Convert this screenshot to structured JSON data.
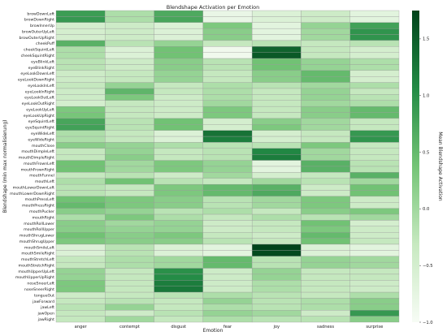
{
  "chart_data": {
    "type": "heatmap",
    "title": "Blendshape Activation per Emotion",
    "xlabel": "Emotion",
    "ylabel": "Blendshape (min max normalisierung)",
    "colorbar_label": "Mean Blendshape Activation",
    "colorbar_range": [
      -1.0,
      1.75
    ],
    "colorbar_ticks": [
      -1.0,
      -0.5,
      0.0,
      0.5,
      1.0,
      1.5
    ],
    "colormap": [
      "#f7fcf5",
      "#c7e9c0",
      "#74c476",
      "#238b45",
      "#00441b"
    ],
    "grid": true,
    "columns": [
      "anger",
      "contempt",
      "disgust",
      "fear",
      "joy",
      "sadness",
      "surprise"
    ],
    "rows": [
      "browDownLeft",
      "browDownRight",
      "browInnerUp",
      "browOuterUpLeft",
      "browOuterUpRight",
      "cheekPuff",
      "cheekSquintLeft",
      "cheekSquintRight",
      "eyeBlinkLeft",
      "eyeBlinkRight",
      "eyeLookDownLeft",
      "eyeLookDownRight",
      "eyeLookInLeft",
      "eyeLookInRight",
      "eyeLookOutLeft",
      "eyeLookOutRight",
      "eyeLookUpLeft",
      "eyeLookUpRight",
      "eyeSquintLeft",
      "eyeSquintRight",
      "eyeWideLeft",
      "eyeWideRight",
      "mouthClose",
      "mouthDimpleLeft",
      "mouthDimpleRight",
      "mouthFrownLeft",
      "mouthFrownRight",
      "mouthFunnel",
      "mouthLeft",
      "mouthLowerDownLeft",
      "mouthLowerDownRight",
      "mouthPressLeft",
      "mouthPressRight",
      "mouthPucker",
      "mouthRight",
      "mouthRollLower",
      "mouthRollUpper",
      "mouthShrugLower",
      "mouthShrugUpper",
      "mouthSmileLeft",
      "mouthSmileRight",
      "mouthStretchLeft",
      "mouthStretchRight",
      "mouthUpperUpLeft",
      "mouthUpperUpRight",
      "noseSneerLeft",
      "noseSneerRight",
      "tongueOut",
      "jawForward",
      "jawLeft",
      "jawOpen",
      "jawRight"
    ],
    "values": [
      [
        0.85,
        -0.1,
        0.7,
        -0.8,
        -0.6,
        -0.4,
        -0.7
      ],
      [
        0.9,
        -0.1,
        0.75,
        -0.8,
        -0.6,
        -0.4,
        -0.7
      ],
      [
        -0.5,
        -0.4,
        -0.6,
        0.3,
        -0.7,
        0.1,
        0.8
      ],
      [
        -0.5,
        -0.4,
        -0.6,
        0.2,
        -0.7,
        0.0,
        0.95
      ],
      [
        -0.5,
        -0.4,
        -0.6,
        0.2,
        -0.7,
        0.0,
        0.95
      ],
      [
        0.6,
        -0.2,
        0.1,
        -0.3,
        -0.2,
        -0.3,
        -0.2
      ],
      [
        -0.1,
        -0.6,
        0.4,
        -0.9,
        1.45,
        -0.3,
        -0.5
      ],
      [
        -0.1,
        -0.6,
        0.4,
        -0.9,
        1.55,
        -0.3,
        -0.5
      ],
      [
        -0.2,
        -0.4,
        0.2,
        -0.2,
        0.4,
        0.1,
        -0.1
      ],
      [
        -0.2,
        -0.4,
        0.2,
        -0.2,
        0.4,
        0.1,
        -0.1
      ],
      [
        -0.4,
        -0.3,
        0.1,
        -0.3,
        0.2,
        0.5,
        -0.5
      ],
      [
        -0.4,
        -0.3,
        0.1,
        -0.3,
        0.2,
        0.5,
        -0.5
      ],
      [
        -0.3,
        0.1,
        -0.3,
        -0.1,
        -0.2,
        0.0,
        -0.1
      ],
      [
        -0.4,
        0.55,
        -0.3,
        -0.1,
        -0.3,
        0.1,
        -0.3
      ],
      [
        -0.4,
        0.3,
        -0.4,
        -0.1,
        -0.3,
        0.1,
        -0.2
      ],
      [
        -0.5,
        -0.3,
        -0.4,
        0.0,
        -0.3,
        0.0,
        -0.1
      ],
      [
        0.3,
        -0.3,
        -0.4,
        0.3,
        -0.3,
        0.2,
        0.5
      ],
      [
        0.35,
        -0.3,
        -0.4,
        0.3,
        -0.3,
        0.2,
        0.5
      ],
      [
        0.75,
        -0.2,
        0.4,
        -0.5,
        0.2,
        0.0,
        -0.3
      ],
      [
        0.8,
        -0.2,
        0.4,
        -0.5,
        0.3,
        0.0,
        -0.3
      ],
      [
        -0.1,
        -0.3,
        -0.6,
        1.3,
        -0.5,
        -0.3,
        0.9
      ],
      [
        -0.1,
        -0.3,
        -0.6,
        1.2,
        -0.5,
        -0.3,
        0.95
      ],
      [
        0.2,
        0.1,
        -0.1,
        -0.2,
        -0.2,
        0.3,
        -0.3
      ],
      [
        -0.3,
        0.1,
        -0.3,
        -0.2,
        1.1,
        0.0,
        -0.3
      ],
      [
        -0.3,
        0.2,
        -0.3,
        -0.2,
        1.2,
        0.0,
        -0.3
      ],
      [
        0.4,
        0.0,
        0.3,
        0.1,
        -0.7,
        0.6,
        -0.2
      ],
      [
        0.4,
        0.0,
        0.3,
        0.1,
        -0.7,
        0.6,
        -0.2
      ],
      [
        -0.3,
        -0.2,
        -0.4,
        0.0,
        -0.5,
        -0.3,
        0.6
      ],
      [
        -0.1,
        0.4,
        -0.2,
        -0.3,
        0.0,
        -0.2,
        0.0
      ],
      [
        -0.2,
        -0.3,
        0.3,
        0.5,
        0.6,
        -0.4,
        0.4
      ],
      [
        -0.2,
        -0.3,
        0.3,
        0.5,
        0.7,
        -0.4,
        0.4
      ],
      [
        0.4,
        0.3,
        0.2,
        -0.2,
        0.0,
        0.3,
        -0.4
      ],
      [
        0.5,
        0.3,
        0.2,
        -0.2,
        0.0,
        0.3,
        -0.4
      ],
      [
        0.2,
        0.1,
        -0.2,
        -0.1,
        -0.3,
        0.2,
        0.3
      ],
      [
        -0.1,
        0.3,
        -0.1,
        -0.3,
        -0.1,
        -0.2,
        0.0
      ],
      [
        0.2,
        0.0,
        0.1,
        -0.4,
        -0.3,
        0.4,
        -0.5
      ],
      [
        0.2,
        0.1,
        0.1,
        -0.4,
        -0.3,
        0.3,
        -0.4
      ],
      [
        0.4,
        0.2,
        0.3,
        -0.3,
        -0.4,
        0.5,
        -0.4
      ],
      [
        0.3,
        0.2,
        0.2,
        -0.2,
        -0.3,
        0.4,
        -0.3
      ],
      [
        -0.6,
        -0.2,
        -0.6,
        -0.7,
        1.75,
        -0.6,
        -0.7
      ],
      [
        -0.6,
        -0.2,
        -0.6,
        -0.7,
        1.7,
        -0.6,
        -0.7
      ],
      [
        -0.3,
        -0.1,
        0.0,
        0.5,
        -0.2,
        0.1,
        0.0
      ],
      [
        -0.3,
        -0.1,
        0.0,
        0.5,
        -0.2,
        0.1,
        0.0
      ],
      [
        0.1,
        -0.3,
        1.0,
        -0.4,
        0.1,
        -0.3,
        -0.3
      ],
      [
        0.1,
        -0.3,
        1.05,
        -0.4,
        0.1,
        -0.3,
        -0.3
      ],
      [
        0.3,
        -0.3,
        1.2,
        -0.4,
        -0.1,
        -0.3,
        -0.4
      ],
      [
        0.3,
        -0.3,
        1.25,
        -0.4,
        -0.1,
        -0.3,
        -0.4
      ],
      [
        -0.4,
        -0.3,
        -0.2,
        -0.1,
        -0.2,
        -0.3,
        -0.1
      ],
      [
        -0.3,
        -0.2,
        -0.3,
        0.1,
        -0.2,
        -0.1,
        0.2
      ],
      [
        -0.2,
        0.1,
        -0.3,
        -0.1,
        -0.2,
        -0.1,
        0.2
      ],
      [
        -0.3,
        -0.4,
        -0.2,
        0.1,
        0.0,
        -0.4,
        0.9
      ],
      [
        -0.3,
        0.0,
        -0.3,
        -0.1,
        -0.2,
        -0.2,
        0.2
      ]
    ]
  }
}
